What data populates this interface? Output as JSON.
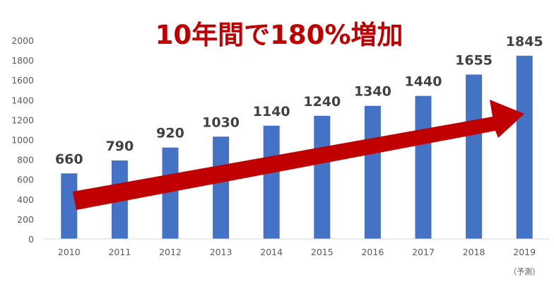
{
  "chart_data": {
    "type": "bar",
    "title": "10年間で180%増加",
    "categories": [
      "2010",
      "2011",
      "2012",
      "2013",
      "2014",
      "2015",
      "2016",
      "2017",
      "2018",
      "2019"
    ],
    "category_notes": [
      "",
      "",
      "",
      "",
      "",
      "",
      "",
      "",
      "",
      "（予測）"
    ],
    "values": [
      660,
      790,
      920,
      1030,
      1140,
      1240,
      1340,
      1440,
      1655,
      1845
    ],
    "data_labels": [
      "660",
      "790",
      "920",
      "1030",
      "1140",
      "1240",
      "1340",
      "1440",
      "1655",
      "1845"
    ],
    "ylim": [
      0,
      2000
    ],
    "yticks": [
      "0",
      "200",
      "400",
      "600",
      "800",
      "1000",
      "1200",
      "1400",
      "1600",
      "1800",
      "2000"
    ],
    "grid": false,
    "legend": "none",
    "colors": {
      "bar": "#4472c4",
      "arrow": "#c00000",
      "title": "#c00000",
      "label": "#404040",
      "axis_text": "#595959",
      "axis_line": "#d9d9d9"
    }
  }
}
